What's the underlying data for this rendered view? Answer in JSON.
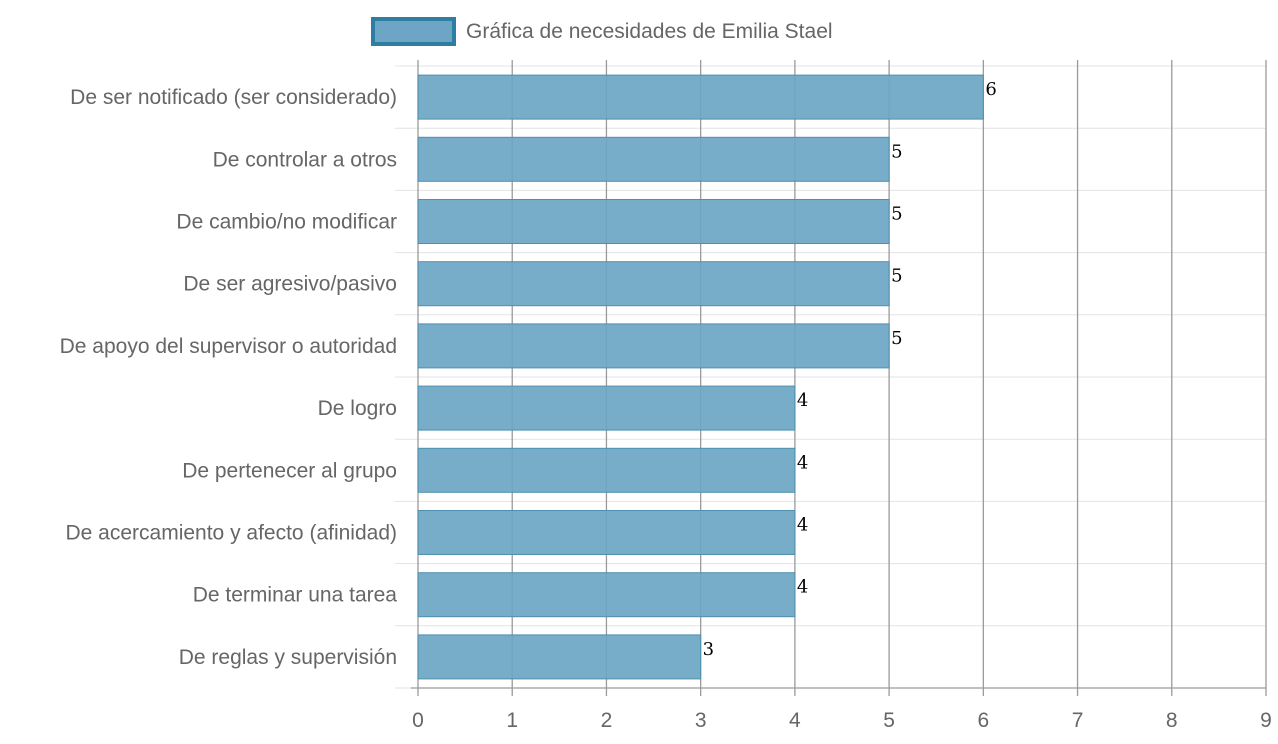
{
  "chart_data": {
    "type": "bar",
    "orientation": "horizontal",
    "categories": [
      "De ser notificado (ser considerado)",
      "De controlar a otros",
      "De cambio/no modificar",
      "De ser agresivo/pasivo",
      "De apoyo del supervisor o autoridad",
      "De logro",
      "De pertenecer al grupo",
      "De acercamiento y afecto (afinidad)",
      "De terminar una tarea",
      "De reglas y supervisión"
    ],
    "series": [
      {
        "name": "Gráfica de necesidades de Emilia Stael",
        "values": [
          6,
          5,
          5,
          5,
          5,
          4,
          4,
          4,
          4,
          3
        ]
      }
    ],
    "xlim": [
      0,
      9
    ],
    "xticks": [
      "0",
      "1",
      "2",
      "3",
      "4",
      "5",
      "6",
      "7",
      "8",
      "9"
    ],
    "grid": true,
    "legend": "top-center",
    "data_labels": true,
    "colors": {
      "bar_fill": "#6ca6c4",
      "bar_border": "#2e7da3",
      "grid": "#e3e3e3",
      "vertical_grid": "#9a9a9a",
      "text": "#666666",
      "value_text": "#000000"
    }
  }
}
